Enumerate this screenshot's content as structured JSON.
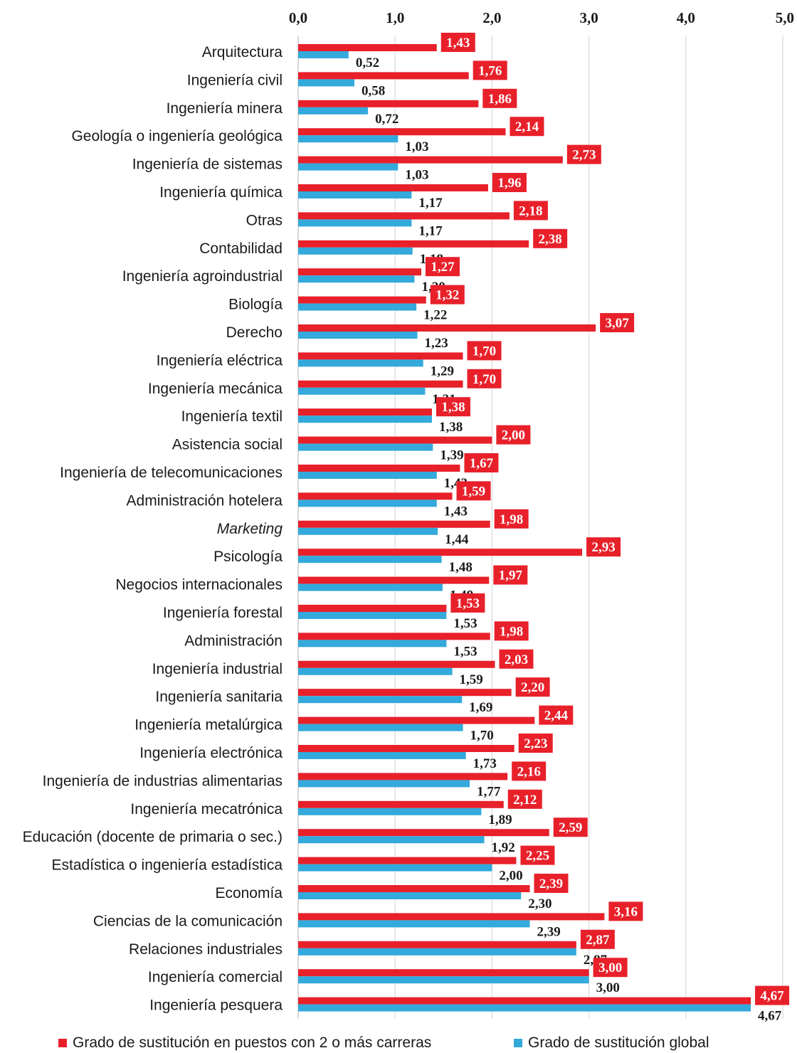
{
  "chart_data": {
    "type": "bar",
    "orientation": "horizontal",
    "categories": [
      "Arquitectura",
      "Ingeniería civil",
      "Ingeniería minera",
      "Geología o ingeniería geológica",
      "Ingeniería de sistemas",
      "Ingeniería química",
      "Otras",
      "Contabilidad",
      "Ingeniería agroindustrial",
      "Biología",
      "Derecho",
      "Ingeniería eléctrica",
      "Ingeniería mecánica",
      "Ingeniería textil",
      "Asistencia social",
      "Ingeniería de telecomunicaciones",
      "Administración hotelera",
      "Marketing",
      "Psicología",
      "Negocios internacionales",
      "Ingeniería forestal",
      "Administración",
      "Ingeniería industrial",
      "Ingeniería sanitaria",
      "Ingeniería metalúrgica",
      "Ingeniería electrónica",
      "Ingeniería de industrias alimentarias",
      "Ingeniería mecatrónica",
      "Educación (docente de primaria o sec.)",
      "Estadística o ingeniería estadística",
      "Economía",
      "Ciencias de la comunicación",
      "Relaciones industriales",
      "Ingeniería comercial",
      "Ingeniería pesquera"
    ],
    "italic_categories": [
      "Marketing"
    ],
    "series": [
      {
        "name": "Grado de sustitución en puestos con 2 o más carreras",
        "color": "#e8202a",
        "values": [
          1.43,
          1.76,
          1.86,
          2.14,
          2.73,
          1.96,
          2.18,
          2.38,
          1.27,
          1.32,
          3.07,
          1.7,
          1.7,
          1.38,
          2.0,
          1.67,
          1.59,
          1.98,
          2.93,
          1.97,
          1.53,
          1.98,
          2.03,
          2.2,
          2.44,
          2.23,
          2.16,
          2.12,
          2.59,
          2.25,
          2.39,
          3.16,
          2.87,
          3.0,
          4.67
        ],
        "labels": [
          "1,43",
          "1,76",
          "1,86",
          "2,14",
          "2,73",
          "1,96",
          "2,18",
          "2,38",
          "1,27",
          "1,32",
          "3,07",
          "1,70",
          "1,70",
          "1,38",
          "2,00",
          "1,67",
          "1,59",
          "1,98",
          "2,93",
          "1,97",
          "1,53",
          "1,98",
          "2,03",
          "2,20",
          "2,44",
          "2,23",
          "2,16",
          "2,12",
          "2,59",
          "2,25",
          "2,39",
          "3,16",
          "2,87",
          "3,00",
          "4,67"
        ]
      },
      {
        "name": "Grado de sustitución global",
        "color": "#33a9dc",
        "values": [
          0.52,
          0.58,
          0.72,
          1.03,
          1.03,
          1.17,
          1.17,
          1.18,
          1.2,
          1.22,
          1.23,
          1.29,
          1.31,
          1.38,
          1.39,
          1.43,
          1.43,
          1.44,
          1.48,
          1.49,
          1.53,
          1.53,
          1.59,
          1.69,
          1.7,
          1.73,
          1.77,
          1.89,
          1.92,
          2.0,
          2.3,
          2.39,
          2.87,
          3.0,
          4.67
        ],
        "labels": [
          "0,52",
          "0,58",
          "0,72",
          "1,03",
          "1,03",
          "1,17",
          "1,17",
          "1,18",
          "1,20",
          "1,22",
          "1,23",
          "1,29",
          "1,31",
          "1,38",
          "1,39",
          "1,43",
          "1,43",
          "1,44",
          "1,48",
          "1,49",
          "1,53",
          "1,53",
          "1,59",
          "1,69",
          "1,70",
          "1,73",
          "1,77",
          "1,89",
          "1,92",
          "2,00",
          "2,30",
          "2,39",
          "2,87",
          "3,00",
          "4,67"
        ]
      }
    ],
    "xticks": [
      "0,0",
      "1,0",
      "2,0",
      "3,0",
      "4,0",
      "5,0"
    ],
    "xlim": [
      0,
      5
    ],
    "xaxis_position": "top",
    "grid": true,
    "legend_position": "bottom",
    "title": "",
    "xlabel": "",
    "ylabel": ""
  },
  "legend": {
    "red_label": "Grado de sustitución en puestos con 2 o más carreras",
    "blue_label": "Grado de sustitución global"
  }
}
